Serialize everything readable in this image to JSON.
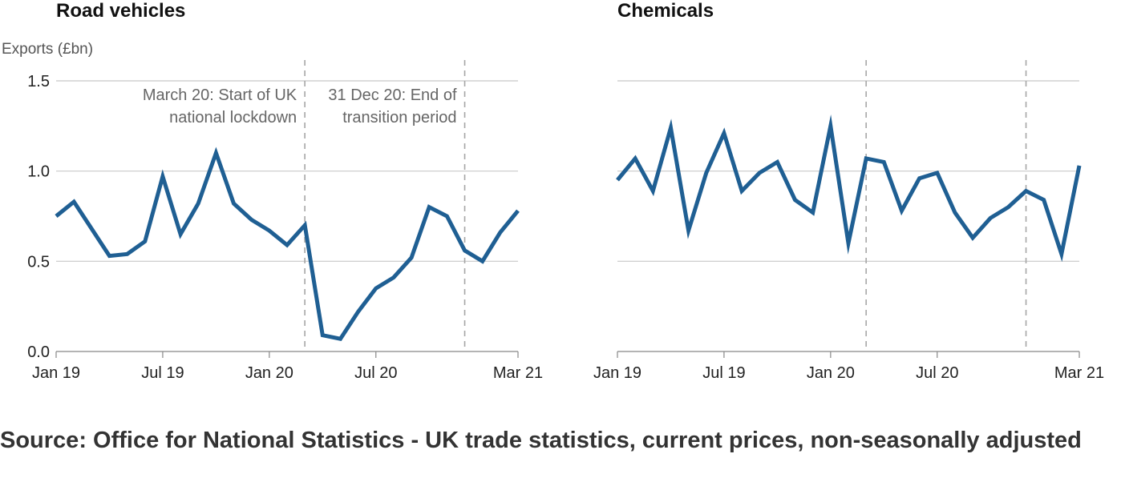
{
  "source": "Source: Office for National Statistics - UK trade statistics, current prices, non-seasonally adjusted",
  "colors": {
    "line": "#1f5f93",
    "grid": "#c8c8c8",
    "vline": "#a6a6a6"
  },
  "chart_data": [
    {
      "type": "line",
      "title": "Road vehicles",
      "ylabel": "Exports (£bn)",
      "ylim": [
        0,
        1.5
      ],
      "yticks": [
        0.0,
        0.5,
        1.0,
        1.5
      ],
      "ytick_labels": [
        "0.0",
        "0.5",
        "1.0",
        "1.5"
      ],
      "xticks": [
        "Jan 19",
        "Jul 19",
        "Jan 20",
        "Jul 20",
        "Mar 21"
      ],
      "xtick_index": [
        0,
        6,
        12,
        18,
        26
      ],
      "x": [
        "Jan 19",
        "Feb 19",
        "Mar 19",
        "Apr 19",
        "May 19",
        "Jun 19",
        "Jul 19",
        "Aug 19",
        "Sep 19",
        "Oct 19",
        "Nov 19",
        "Dec 19",
        "Jan 20",
        "Feb 20",
        "Mar 20",
        "Apr 20",
        "May 20",
        "Jun 20",
        "Jul 20",
        "Aug 20",
        "Sep 20",
        "Oct 20",
        "Nov 20",
        "Dec 20",
        "Jan 21",
        "Feb 21",
        "Mar 21"
      ],
      "series": [
        {
          "values": [
            0.75,
            0.83,
            0.68,
            0.53,
            0.54,
            0.61,
            0.97,
            0.65,
            0.82,
            1.1,
            0.82,
            0.73,
            0.67,
            0.59,
            0.7,
            0.09,
            0.07,
            0.22,
            0.35,
            0.41,
            0.52,
            0.8,
            0.75,
            0.56,
            0.5,
            0.66,
            0.78
          ]
        }
      ],
      "grid": true,
      "annotations": [
        {
          "x": "Mar 20",
          "lines": [
            "March 20: Start of UK",
            "national lockdown"
          ],
          "anchor": "end"
        },
        {
          "x": "Dec 20",
          "lines": [
            "31 Dec 20: End of",
            "transition period"
          ],
          "anchor": "end"
        }
      ]
    },
    {
      "type": "line",
      "title": "Chemicals",
      "ylabel": "",
      "ylim": [
        0,
        1.5
      ],
      "yticks": [
        0.0,
        0.5,
        1.0,
        1.5
      ],
      "ytick_labels": [],
      "xticks": [
        "Jan 19",
        "Jul 19",
        "Jan 20",
        "Jul 20",
        "Mar 21"
      ],
      "xtick_index": [
        0,
        6,
        12,
        18,
        26
      ],
      "x": [
        "Jan 19",
        "Feb 19",
        "Mar 19",
        "Apr 19",
        "May 19",
        "Jun 19",
        "Jul 19",
        "Aug 19",
        "Sep 19",
        "Oct 19",
        "Nov 19",
        "Dec 19",
        "Jan 20",
        "Feb 20",
        "Mar 20",
        "Apr 20",
        "May 20",
        "Jun 20",
        "Jul 20",
        "Aug 20",
        "Sep 20",
        "Oct 20",
        "Nov 20",
        "Dec 20",
        "Jan 21",
        "Feb 21",
        "Mar 21"
      ],
      "series": [
        {
          "values": [
            0.95,
            1.07,
            0.89,
            1.24,
            0.67,
            0.99,
            1.21,
            0.89,
            0.99,
            1.05,
            0.84,
            0.77,
            1.25,
            0.6,
            1.07,
            1.05,
            0.78,
            0.96,
            0.99,
            0.77,
            0.63,
            0.74,
            0.8,
            0.89,
            0.84,
            0.54,
            1.03
          ]
        }
      ],
      "grid": true,
      "annotations": [
        {
          "x": "Mar 20",
          "lines": []
        },
        {
          "x": "Dec 20",
          "lines": []
        }
      ]
    }
  ]
}
